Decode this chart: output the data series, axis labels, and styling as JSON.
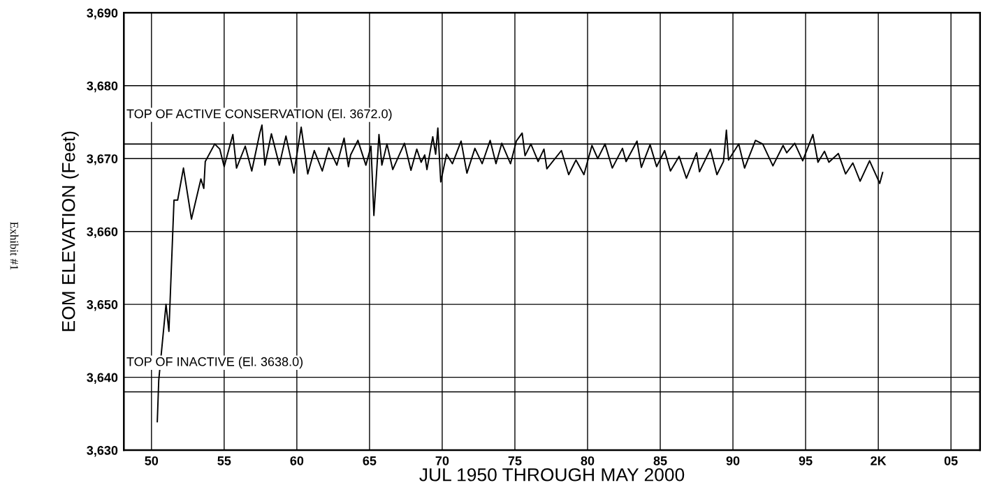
{
  "chart_data": {
    "type": "line",
    "xlabel": "JUL 1950 THROUGH MAY 2000",
    "ylabel": "EOM ELEVATION (Feet)",
    "annotations": [
      "Exhibit #1"
    ],
    "xlim": [
      1948.1,
      2007.0
    ],
    "xticks": [
      {
        "value": 1950,
        "label": "50"
      },
      {
        "value": 1955,
        "label": "55"
      },
      {
        "value": 1960,
        "label": "60"
      },
      {
        "value": 1965,
        "label": "65"
      },
      {
        "value": 1970,
        "label": "70"
      },
      {
        "value": 1975,
        "label": "75"
      },
      {
        "value": 1980,
        "label": "80"
      },
      {
        "value": 1985,
        "label": "85"
      },
      {
        "value": 1990,
        "label": "90"
      },
      {
        "value": 1995,
        "label": "95"
      },
      {
        "value": 2000,
        "label": "2K"
      },
      {
        "value": 2005,
        "label": "05"
      }
    ],
    "ylim": [
      3630,
      3690
    ],
    "yticks": [
      {
        "value": 3630,
        "label": "3,630"
      },
      {
        "value": 3640,
        "label": "3,640"
      },
      {
        "value": 3650,
        "label": "3,650"
      },
      {
        "value": 3660,
        "label": "3,660"
      },
      {
        "value": 3670,
        "label": "3,670"
      },
      {
        "value": 3680,
        "label": "3,680"
      },
      {
        "value": 3690,
        "label": "3,690"
      }
    ],
    "grid": true,
    "legend": false,
    "marker": "none",
    "line_style": "solid",
    "ref_lines": [
      {
        "axis": "y",
        "value": 3672.0,
        "label": "TOP OF ACTIVE CONSERVATION (El. 3672.0)",
        "color": "#000000"
      },
      {
        "axis": "y",
        "value": 3638.0,
        "label": "TOP OF INACTIVE (El. 3638.0)",
        "color": "#000000"
      }
    ],
    "series": [
      {
        "color": "#000000",
        "x": [
          1950.4,
          1950.5,
          1951.0,
          1951.2,
          1951.55,
          1951.8,
          1952.2,
          1952.75,
          1953.4,
          1953.6,
          1953.7,
          1954.35,
          1954.7,
          1955.0,
          1955.6,
          1955.85,
          1956.45,
          1956.9,
          1957.45,
          1957.6,
          1957.8,
          1958.25,
          1958.8,
          1959.25,
          1959.8,
          1960.3,
          1960.75,
          1961.2,
          1961.75,
          1962.2,
          1962.75,
          1963.25,
          1963.55,
          1963.7,
          1964.2,
          1964.75,
          1965.1,
          1965.3,
          1965.65,
          1965.85,
          1966.2,
          1966.6,
          1967.4,
          1967.85,
          1968.25,
          1968.55,
          1968.8,
          1968.95,
          1969.35,
          1969.55,
          1969.7,
          1969.9,
          1970.3,
          1970.7,
          1971.3,
          1971.7,
          1972.25,
          1972.75,
          1973.3,
          1973.7,
          1974.1,
          1974.7,
          1975.1,
          1975.5,
          1975.7,
          1976.1,
          1976.6,
          1977.0,
          1977.2,
          1978.2,
          1978.7,
          1979.2,
          1979.75,
          1980.3,
          1980.7,
          1981.2,
          1981.7,
          1982.4,
          1982.65,
          1983.4,
          1983.7,
          1984.3,
          1984.75,
          1985.3,
          1985.7,
          1986.3,
          1986.8,
          1987.5,
          1987.7,
          1988.45,
          1988.9,
          1989.35,
          1989.55,
          1989.7,
          1990.4,
          1990.8,
          1991.55,
          1992.05,
          1992.75,
          1993.45,
          1993.7,
          1994.25,
          1994.8,
          1995.5,
          1995.85,
          1996.3,
          1996.6,
          1997.25,
          1997.75,
          1998.25,
          1998.75,
          1999.4,
          2000.1,
          2000.3
        ],
        "values": [
          3633.9,
          3639.6,
          3650.0,
          3646.3,
          3664.3,
          3664.3,
          3668.7,
          3661.7,
          3667.2,
          3665.9,
          3669.6,
          3672.0,
          3671.3,
          3668.9,
          3673.3,
          3668.7,
          3671.7,
          3668.3,
          3673.5,
          3674.6,
          3669.1,
          3673.4,
          3669.1,
          3673.1,
          3668.0,
          3674.3,
          3667.9,
          3671.1,
          3668.3,
          3671.5,
          3669.1,
          3672.8,
          3668.9,
          3670.5,
          3672.5,
          3669.1,
          3671.7,
          3662.2,
          3673.3,
          3669.1,
          3672.0,
          3668.5,
          3672.1,
          3668.4,
          3671.3,
          3669.5,
          3670.5,
          3668.5,
          3673.0,
          3670.6,
          3674.2,
          3666.8,
          3670.6,
          3669.3,
          3672.4,
          3668.0,
          3671.4,
          3669.3,
          3672.5,
          3669.3,
          3672.1,
          3669.3,
          3672.4,
          3673.5,
          3670.4,
          3672.0,
          3669.6,
          3671.3,
          3668.6,
          3671.1,
          3667.8,
          3669.8,
          3667.8,
          3671.8,
          3670.0,
          3672.0,
          3668.7,
          3671.4,
          3669.6,
          3672.4,
          3668.8,
          3671.9,
          3668.9,
          3671.1,
          3668.3,
          3670.3,
          3667.3,
          3670.8,
          3668.2,
          3671.3,
          3667.8,
          3669.6,
          3673.9,
          3669.8,
          3672.0,
          3668.7,
          3672.5,
          3672.0,
          3669.0,
          3671.8,
          3670.8,
          3672.1,
          3669.7,
          3673.3,
          3669.5,
          3671.0,
          3669.5,
          3670.7,
          3667.9,
          3669.4,
          3666.9,
          3669.7,
          3666.6,
          3668.1
        ]
      }
    ]
  }
}
